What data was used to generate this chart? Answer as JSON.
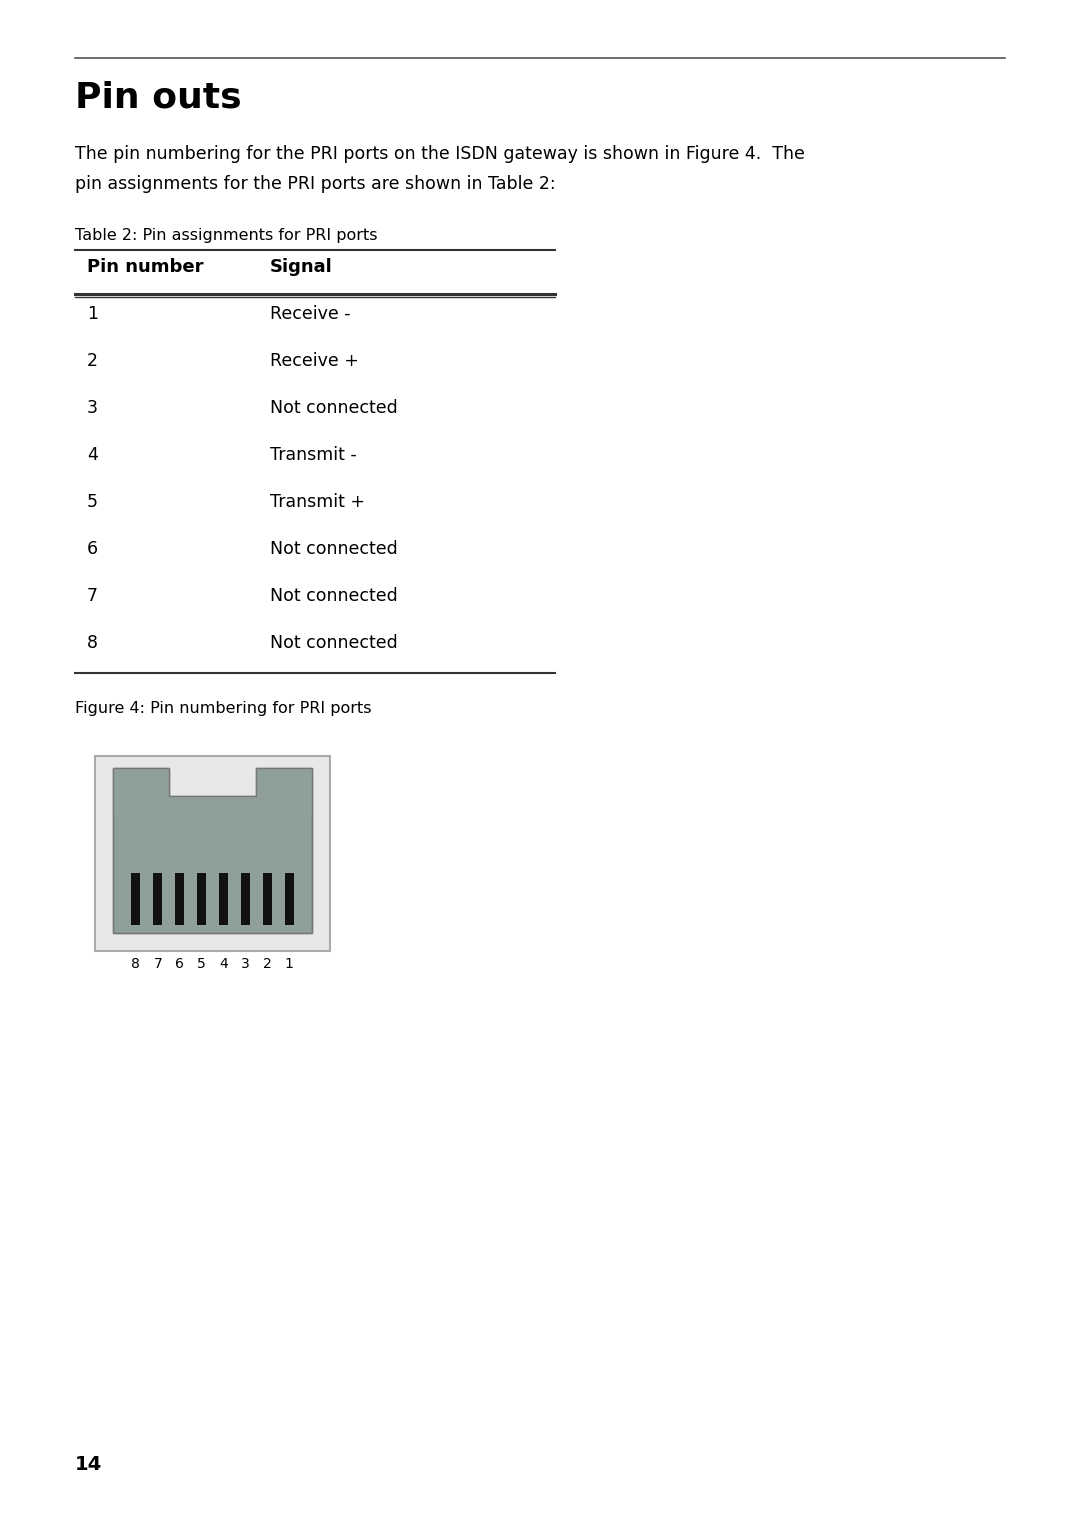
{
  "title": "Pin outs",
  "intro_line1": "The pin numbering for the PRI ports on the ISDN gateway is shown in Figure 4.  The",
  "intro_line2": "pin assignments for the PRI ports are shown in Table 2:",
  "table_caption": "Table 2: Pin assignments for PRI ports",
  "table_headers": [
    "Pin number",
    "Signal"
  ],
  "table_rows": [
    [
      "1",
      "Receive -"
    ],
    [
      "2",
      "Receive +"
    ],
    [
      "3",
      "Not connected"
    ],
    [
      "4",
      "Transmit -"
    ],
    [
      "5",
      "Transmit +"
    ],
    [
      "6",
      "Not connected"
    ],
    [
      "7",
      "Not connected"
    ],
    [
      "8",
      "Not connected"
    ]
  ],
  "figure_caption": "Figure 4: Pin numbering for PRI ports",
  "page_number": "14",
  "bg_color": "#ffffff",
  "text_color": "#000000",
  "line_color": "#555555",
  "connector_outer_bg": "#e8e8e8",
  "connector_body_dark": "#8fa09a",
  "connector_body_light": "#aabbb5",
  "connector_border": "#888888",
  "pin_color": "#111111"
}
